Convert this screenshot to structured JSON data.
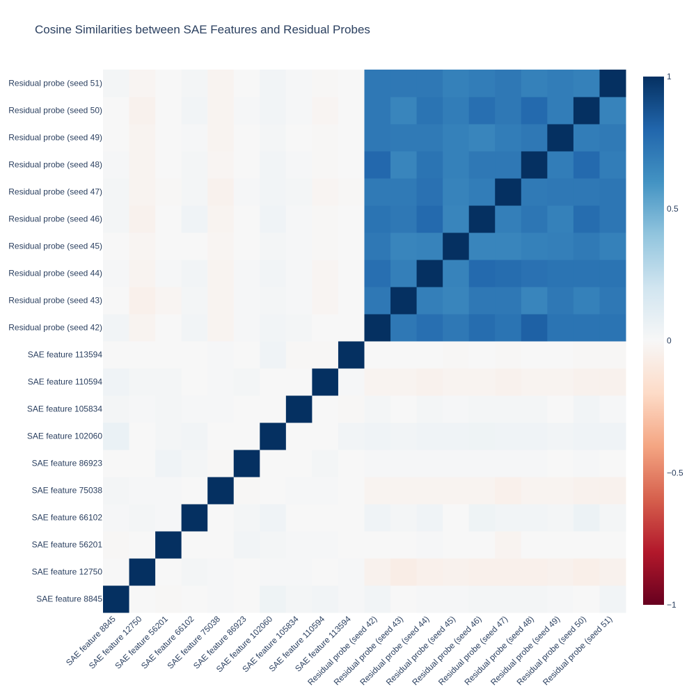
{
  "chart_data": {
    "type": "heatmap",
    "title": "Cosine Similarities between SAE Features and Residual Probes",
    "labels": [
      "SAE feature 8845",
      "SAE feature 12750",
      "SAE feature 56201",
      "SAE feature 66102",
      "SAE feature 75038",
      "SAE feature 86923",
      "SAE feature 102060",
      "SAE feature 105834",
      "SAE feature 110594",
      "SAE feature 113594",
      "Residual probe (seed 42)",
      "Residual probe (seed 43)",
      "Residual probe (seed 44)",
      "Residual probe (seed 45)",
      "Residual probe (seed 46)",
      "Residual probe (seed 47)",
      "Residual probe (seed 48)",
      "Residual probe (seed 49)",
      "Residual probe (seed 50)",
      "Residual probe (seed 51)"
    ],
    "zmin": -1,
    "zmax": 1,
    "colorbar": {
      "tickvals": [
        1,
        0.5,
        0,
        -0.5,
        -1
      ],
      "ticktext": [
        "1",
        "0.5",
        "0",
        "−0.5",
        "−1"
      ]
    },
    "colorscale": [
      "#67001f",
      "#b2182b",
      "#d6604d",
      "#f4a582",
      "#fddbc7",
      "#f7f7f7",
      "#d1e5f0",
      "#92c5de",
      "#4393c3",
      "#2166ac",
      "#053061"
    ],
    "z": [
      [
        1.0,
        0.0,
        -0.01,
        0.0,
        0.01,
        0.0,
        0.05,
        0.02,
        0.03,
        0.01,
        0.03,
        0.0,
        0.01,
        0.01,
        0.02,
        0.02,
        0.02,
        0.01,
        0.0,
        0.03
      ],
      [
        0.0,
        1.0,
        0.0,
        0.02,
        0.01,
        0.0,
        0.01,
        0.01,
        0.0,
        0.01,
        -0.04,
        -0.07,
        -0.05,
        -0.04,
        -0.05,
        -0.05,
        -0.05,
        -0.04,
        -0.06,
        -0.04
      ],
      [
        -0.01,
        0.0,
        1.0,
        0.0,
        0.0,
        0.03,
        0.02,
        0.01,
        0.01,
        0.0,
        0.0,
        0.0,
        0.01,
        0.0,
        0.0,
        -0.03,
        0.0,
        0.0,
        0.0,
        0.0
      ],
      [
        0.01,
        0.02,
        0.01,
        1.0,
        0.0,
        0.02,
        0.04,
        0.0,
        0.0,
        0.0,
        0.04,
        0.02,
        0.04,
        0.0,
        0.05,
        0.03,
        0.03,
        0.02,
        0.06,
        0.02
      ],
      [
        0.02,
        0.01,
        0.01,
        0.0,
        1.0,
        -0.01,
        0.0,
        0.01,
        0.01,
        0.0,
        -0.03,
        -0.03,
        -0.03,
        -0.03,
        -0.03,
        -0.05,
        -0.03,
        -0.03,
        -0.04,
        -0.04
      ],
      [
        0.0,
        0.0,
        0.04,
        0.02,
        -0.01,
        1.0,
        0.0,
        0.0,
        0.02,
        0.0,
        0.01,
        0.01,
        0.01,
        0.01,
        0.01,
        0.01,
        0.01,
        0.0,
        0.01,
        0.0
      ],
      [
        0.07,
        0.0,
        0.02,
        0.03,
        0.0,
        0.0,
        1.0,
        0.0,
        0.0,
        0.03,
        0.04,
        0.03,
        0.04,
        0.04,
        0.05,
        0.04,
        0.04,
        0.03,
        0.04,
        0.04
      ],
      [
        0.02,
        0.01,
        0.02,
        0.01,
        0.01,
        0.0,
        0.0,
        1.0,
        0.0,
        -0.01,
        0.02,
        0.0,
        0.02,
        0.01,
        0.02,
        0.02,
        0.02,
        0.0,
        0.03,
        0.01
      ],
      [
        0.04,
        0.02,
        0.02,
        0.0,
        0.01,
        0.02,
        0.0,
        0.0,
        1.0,
        0.01,
        -0.03,
        -0.03,
        -0.04,
        -0.03,
        -0.03,
        -0.04,
        -0.03,
        -0.03,
        -0.04,
        -0.04
      ],
      [
        0.0,
        0.0,
        0.0,
        0.0,
        0.01,
        0.0,
        0.04,
        -0.01,
        -0.01,
        1.0,
        0.0,
        0.0,
        0.0,
        -0.01,
        0.0,
        -0.01,
        0.0,
        0.0,
        -0.01,
        -0.01
      ],
      [
        0.03,
        -0.03,
        0.0,
        0.03,
        -0.03,
        0.01,
        0.03,
        0.02,
        0.0,
        0.0,
        1.0,
        0.72,
        0.76,
        0.72,
        0.77,
        0.74,
        0.82,
        0.74,
        0.74,
        0.74
      ],
      [
        0.0,
        -0.05,
        -0.02,
        0.02,
        -0.03,
        0.01,
        0.02,
        0.01,
        -0.02,
        0.0,
        0.72,
        1.0,
        0.69,
        0.66,
        0.72,
        0.72,
        0.66,
        0.72,
        0.68,
        0.72
      ],
      [
        0.01,
        -0.03,
        0.01,
        0.03,
        -0.03,
        0.01,
        0.03,
        0.01,
        -0.02,
        0.0,
        0.76,
        0.69,
        1.0,
        0.67,
        0.78,
        0.77,
        0.75,
        0.74,
        0.74,
        0.74
      ],
      [
        0.0,
        -0.02,
        0.0,
        0.0,
        -0.02,
        0.0,
        0.02,
        0.01,
        -0.01,
        0.0,
        0.72,
        0.66,
        0.67,
        1.0,
        0.66,
        0.66,
        0.68,
        0.69,
        0.71,
        0.68
      ],
      [
        0.02,
        -0.04,
        0.0,
        0.04,
        -0.03,
        0.0,
        0.04,
        0.01,
        -0.01,
        0.0,
        0.74,
        0.72,
        0.78,
        0.66,
        1.0,
        0.69,
        0.73,
        0.68,
        0.77,
        0.73
      ],
      [
        0.02,
        -0.03,
        -0.01,
        0.02,
        -0.04,
        0.01,
        0.03,
        0.02,
        -0.02,
        -0.01,
        0.71,
        0.71,
        0.75,
        0.67,
        0.7,
        1.0,
        0.71,
        0.72,
        0.72,
        0.73
      ],
      [
        0.01,
        -0.03,
        0.0,
        0.02,
        -0.02,
        0.0,
        0.03,
        0.01,
        -0.01,
        0.0,
        0.79,
        0.66,
        0.74,
        0.68,
        0.72,
        0.72,
        1.0,
        0.7,
        0.78,
        0.7
      ],
      [
        0.0,
        -0.03,
        0.0,
        0.01,
        -0.03,
        0.0,
        0.02,
        0.0,
        -0.01,
        0.0,
        0.72,
        0.71,
        0.71,
        0.68,
        0.66,
        0.7,
        0.72,
        1.0,
        0.7,
        0.71
      ],
      [
        0.0,
        -0.04,
        0.0,
        0.03,
        -0.03,
        0.01,
        0.03,
        0.01,
        -0.02,
        0.0,
        0.72,
        0.66,
        0.74,
        0.7,
        0.76,
        0.72,
        0.78,
        0.7,
        1.0,
        0.67
      ],
      [
        0.02,
        -0.02,
        0.0,
        0.02,
        -0.03,
        0.0,
        0.03,
        0.01,
        -0.01,
        0.0,
        0.72,
        0.72,
        0.72,
        0.68,
        0.7,
        0.72,
        0.68,
        0.7,
        0.68,
        1.0
      ]
    ]
  }
}
